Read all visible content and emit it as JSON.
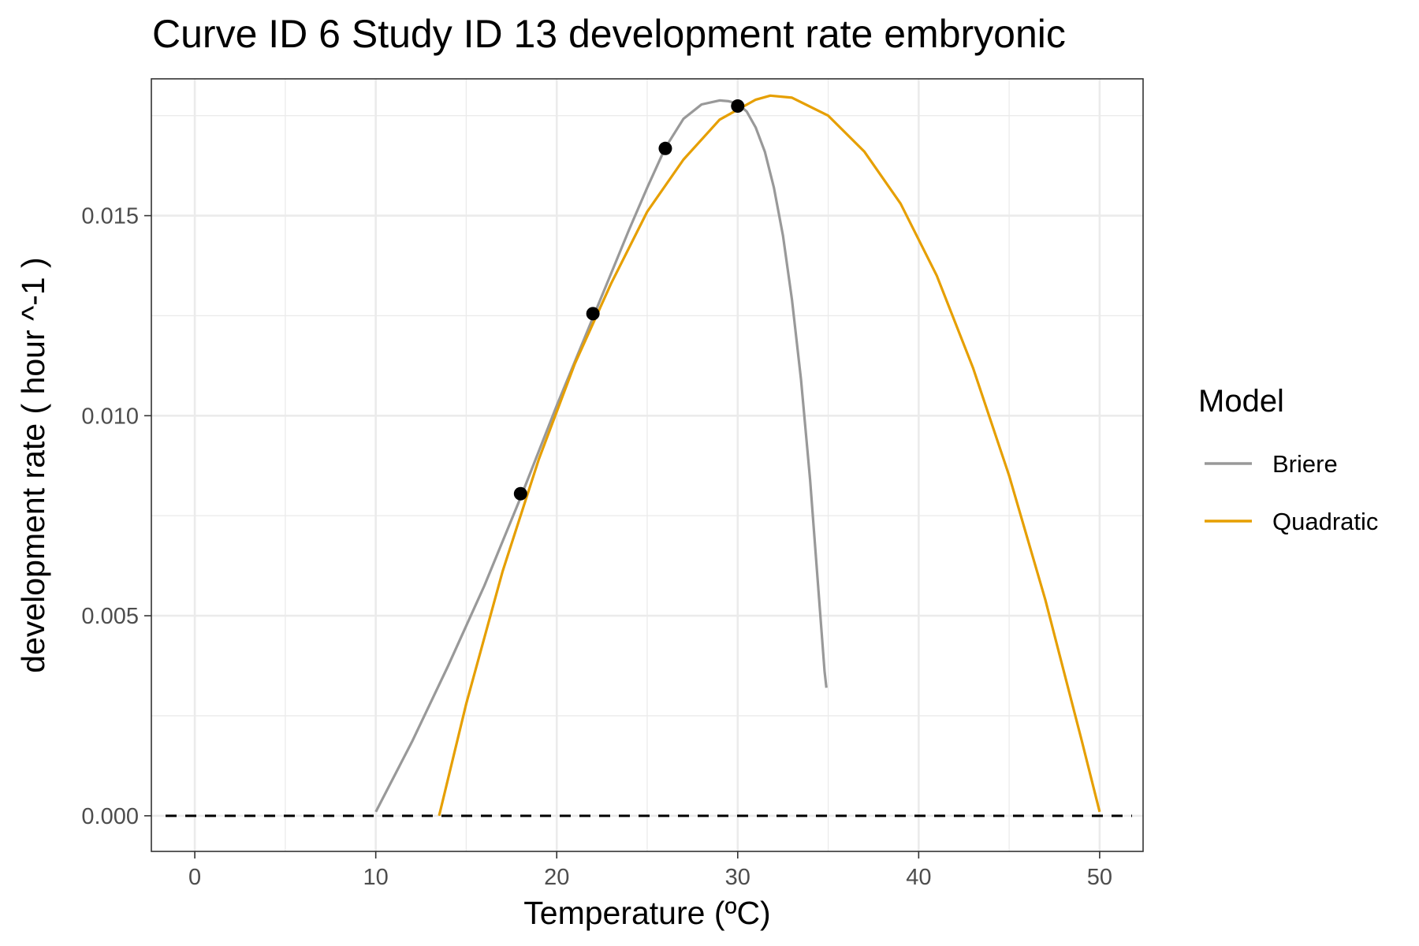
{
  "chart_data": {
    "type": "line",
    "title": "Curve ID 6 Study ID 13 development rate embryonic",
    "xlabel": "Temperature (ºC)",
    "ylabel": "development rate ( hour ^-1 )",
    "xlim": [
      -2.4,
      52.4
    ],
    "ylim": [
      -0.00089,
      0.01842
    ],
    "x_ticks": [
      0,
      10,
      20,
      30,
      40,
      50
    ],
    "x_tick_labels": [
      "0",
      "10",
      "20",
      "30",
      "40",
      "50"
    ],
    "y_ticks": [
      0.0,
      0.005,
      0.01,
      0.015
    ],
    "y_tick_labels": [
      "0.000",
      "0.005",
      "0.010",
      "0.015"
    ],
    "grid": true,
    "reference_line": {
      "y": 0,
      "style": "dashed",
      "color": "#000000"
    },
    "legend": {
      "title": "Model",
      "position": "right"
    },
    "points": {
      "x": [
        18,
        22,
        26,
        30
      ],
      "y": [
        0.00805,
        0.01255,
        0.01668,
        0.01774
      ]
    },
    "series": [
      {
        "name": "Briere",
        "color": "#999999",
        "x": [
          10.0,
          12.0,
          14.0,
          16.0,
          18.0,
          20.0,
          22.0,
          24.0,
          25.0,
          26.0,
          27.0,
          28.0,
          29.0,
          29.5,
          30.0,
          30.5,
          31.0,
          31.5,
          32.0,
          32.5,
          33.0,
          33.5,
          34.0,
          34.3,
          34.6,
          34.8,
          34.9
        ],
        "y": [
          0.0001,
          0.00185,
          0.00375,
          0.00575,
          0.00795,
          0.01025,
          0.01245,
          0.01465,
          0.0157,
          0.0167,
          0.01742,
          0.01778,
          0.01788,
          0.01786,
          0.0178,
          0.0176,
          0.0172,
          0.0166,
          0.0157,
          0.0145,
          0.0129,
          0.0109,
          0.0084,
          0.0066,
          0.0048,
          0.0036,
          0.0032
        ]
      },
      {
        "name": "Quadratic",
        "color": "#E69F00",
        "x": [
          13.5,
          15.0,
          17.0,
          19.0,
          21.0,
          23.0,
          25.0,
          27.0,
          29.0,
          31.0,
          31.8,
          33.0,
          35.0,
          37.0,
          39.0,
          41.0,
          43.0,
          45.0,
          47.0,
          49.0,
          50.0
        ],
        "y": [
          0.0,
          0.0028,
          0.0061,
          0.0089,
          0.0113,
          0.0133,
          0.0151,
          0.0164,
          0.0174,
          0.0179,
          0.018,
          0.01795,
          0.0175,
          0.0166,
          0.0153,
          0.0135,
          0.0112,
          0.0085,
          0.0054,
          0.0019,
          0.0001
        ]
      }
    ]
  }
}
